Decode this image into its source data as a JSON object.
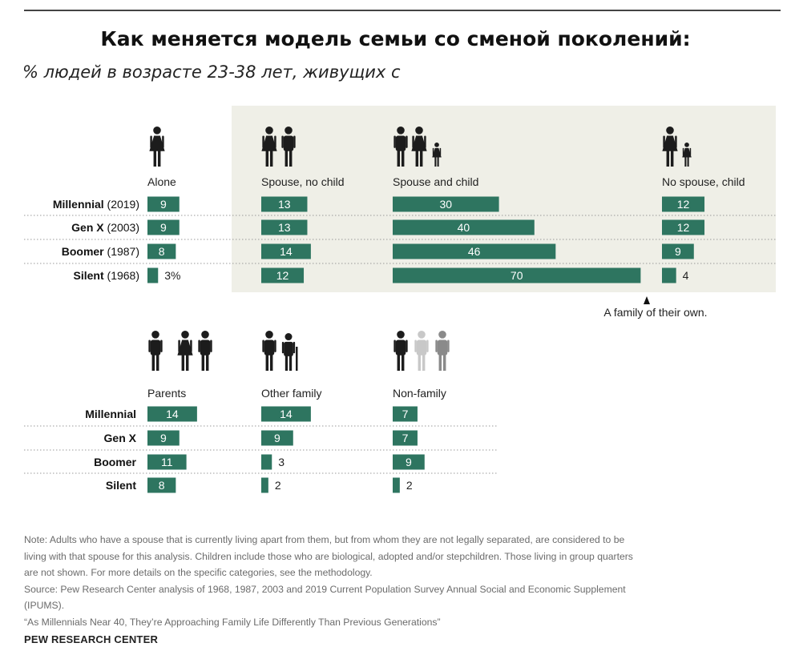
{
  "title": "Как меняется модель семьи со сменой поколений:",
  "subtitle": "% людей в возрасте 23-38 лет, живущих с",
  "annotation": "A family of their own.",
  "colors": {
    "bar": "#2e7560",
    "panel": "#efefe7",
    "icon_dark": "#1c1c1c",
    "icon_light": "#c8c8c8",
    "icon_mid": "#8a8a8a"
  },
  "chart_data": [
    {
      "type": "bar",
      "title": "",
      "unit": "%",
      "categories": [
        "Millennial (2019)",
        "Gen X (2003)",
        "Boomer (1987)",
        "Silent (1968)"
      ],
      "category_parts": [
        {
          "name": "Millennial",
          "year": "(2019)"
        },
        {
          "name": "Gen X",
          "year": "(2003)"
        },
        {
          "name": "Boomer",
          "year": "(1987)"
        },
        {
          "name": "Silent",
          "year": "(1968)"
        }
      ],
      "series": [
        {
          "name": "Alone",
          "icon": "person-icon",
          "values": [
            9,
            9,
            8,
            3
          ],
          "value_labels": [
            "9",
            "9",
            "8",
            "3%"
          ]
        },
        {
          "name": "Spouse, no child",
          "icon": "couple-icon",
          "values": [
            13,
            13,
            14,
            12
          ],
          "value_labels": [
            "13",
            "13",
            "14",
            "12"
          ]
        },
        {
          "name": "Spouse and child",
          "icon": "family-icon",
          "values": [
            30,
            40,
            46,
            70
          ],
          "value_labels": [
            "30",
            "40",
            "46",
            "70"
          ]
        },
        {
          "name": "No spouse, child",
          "icon": "single-parent-icon",
          "values": [
            12,
            12,
            9,
            4
          ],
          "value_labels": [
            "12",
            "12",
            "9",
            "4"
          ]
        }
      ],
      "highlighted_series": [
        "Spouse, no child",
        "Spouse and child",
        "No spouse, child"
      ]
    },
    {
      "type": "bar",
      "title": "",
      "unit": "%",
      "categories": [
        "Millennial",
        "Gen X",
        "Boomer",
        "Silent"
      ],
      "series": [
        {
          "name": "Parents",
          "icon": "parents-icon",
          "values": [
            14,
            9,
            11,
            8
          ],
          "value_labels": [
            "14",
            "9",
            "11",
            "8"
          ]
        },
        {
          "name": "Other family",
          "icon": "elderly-relatives-icon",
          "values": [
            14,
            9,
            3,
            2
          ],
          "value_labels": [
            "14",
            "9",
            "3",
            "2"
          ]
        },
        {
          "name": "Non-family",
          "icon": "roommates-icon",
          "values": [
            7,
            7,
            9,
            2
          ],
          "value_labels": [
            "7",
            "7",
            "9",
            "2"
          ]
        }
      ]
    }
  ],
  "footer": {
    "note_lines": [
      "Note: Adults who have a spouse that is currently living apart from them, but from whom they are not legally separated, are considered to be",
      "living with that spouse for this analysis. Children include those who are biological, adopted and/or stepchildren. Those living in group quarters",
      "are not shown. For more details on the specific categories, see the methodology."
    ],
    "source_lines": [
      "Source: Pew Research Center analysis of 1968, 1987, 2003 and 2019 Current Population Survey Annual Social and Economic Supplement",
      "(IPUMS)."
    ],
    "report": "“As Millennials Near 40, They’re Approaching Family Life Differently Than Previous Generations”",
    "brand": "PEW RESEARCH CENTER"
  }
}
